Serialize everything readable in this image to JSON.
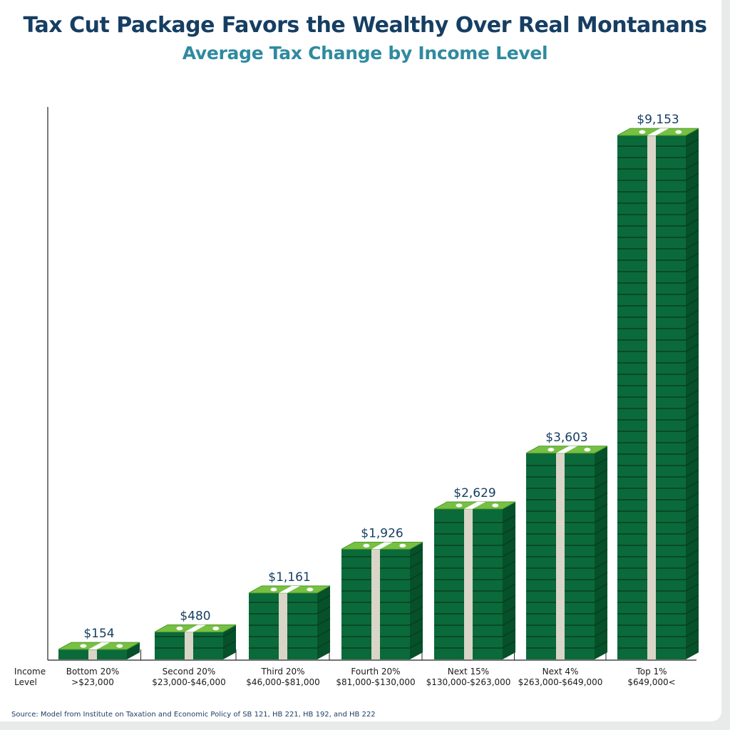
{
  "title": "Tax Cut Package Favors the Wealthy Over Real Montanans",
  "subtitle": "Average Tax Change by Income Level",
  "source": "Source: Model from Institute on Taxation and Economic Policy of SB 121, HB 221, HB 192, and HB 222",
  "colors": {
    "title": "#163e63",
    "subtitle": "#2f8aa0",
    "bill_front": "#0b6a3a",
    "bill_side": "#06502a",
    "bill_top": "#77c043",
    "band": "#d9d6c7"
  },
  "chart_data": {
    "type": "bar",
    "title": "Average Tax Change by Income Level",
    "xlabel": "Income Level",
    "ylabel": "",
    "ylim": [
      0,
      9500
    ],
    "grid": false,
    "categories": [
      {
        "name": "Bottom 20%",
        "range": ">$23,000"
      },
      {
        "name": "Second 20%",
        "range": "$23,000-$46,000"
      },
      {
        "name": "Third 20%",
        "range": "$46,000-$81,000"
      },
      {
        "name": "Fourth 20%",
        "range": "$81,000-$130,000"
      },
      {
        "name": "Next 15%",
        "range": "$130,000-$263,000"
      },
      {
        "name": "Next 4%",
        "range": "$263,000-$649,000"
      },
      {
        "name": "Top 1%",
        "range": "$649,000<"
      }
    ],
    "values": [
      154,
      480,
      1161,
      1926,
      2629,
      3603,
      9153
    ],
    "value_labels": [
      "$154",
      "$480",
      "$1,161",
      "$1,926",
      "$2,629",
      "$3,603",
      "$9,153"
    ]
  }
}
